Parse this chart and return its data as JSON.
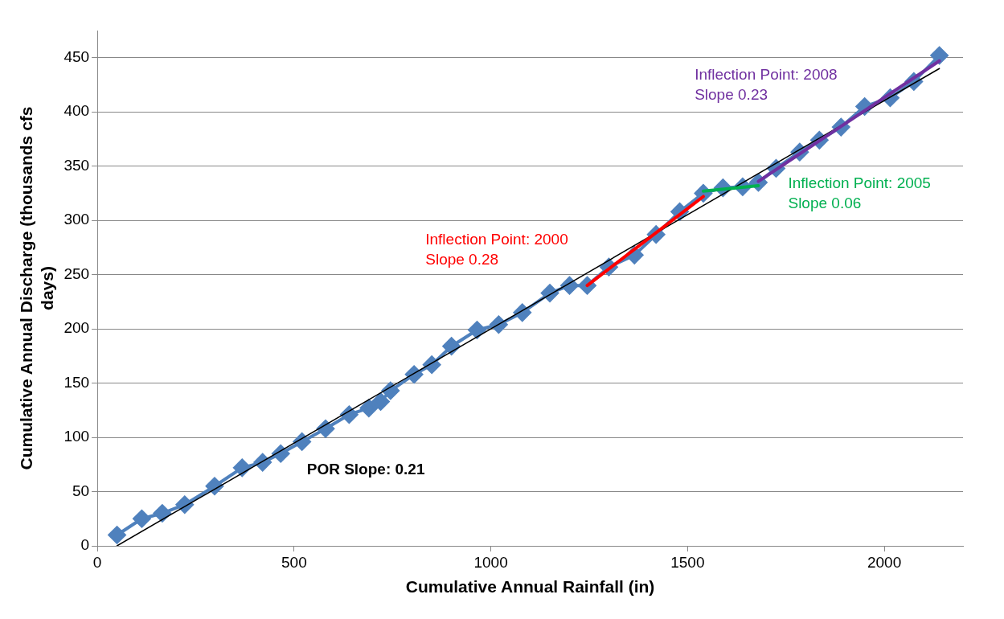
{
  "chart_data": {
    "type": "line",
    "xlabel": "Cumulative Annual Rainfall (in)",
    "ylabel": "Cumulative Annual Discharge (thousands cfs days)",
    "xlim": [
      0,
      2200
    ],
    "xticks": [
      0,
      500,
      1000,
      1500,
      2000
    ],
    "ylim": [
      0,
      475
    ],
    "yticks": [
      0,
      50,
      100,
      150,
      200,
      250,
      300,
      350,
      400,
      450
    ],
    "grid": "y",
    "legend": false,
    "series": [
      {
        "marker": "diamond",
        "color": "#4f81bd",
        "x": [
          50,
          113,
          165,
          222,
          298,
          368,
          420,
          466,
          520,
          580,
          640,
          690,
          720,
          745,
          805,
          850,
          900,
          965,
          1020,
          1080,
          1150,
          1200,
          1245,
          1300,
          1365,
          1420,
          1480,
          1540,
          1590,
          1640,
          1680,
          1725,
          1785,
          1835,
          1890,
          1950,
          2015,
          2075,
          2140
        ],
        "values": [
          10,
          25,
          30,
          38,
          55,
          72,
          77,
          85,
          96,
          108,
          121,
          127,
          133,
          143,
          158,
          167,
          184,
          199,
          204,
          215,
          233,
          240,
          240,
          257,
          268,
          287,
          308,
          325,
          330,
          331,
          335,
          348,
          363,
          374,
          386,
          405,
          413,
          428,
          452
        ]
      },
      {
        "marker": "none",
        "color": "#000000",
        "x": [
          50,
          2140
        ],
        "values": [
          0,
          440
        ]
      },
      {
        "marker": "none",
        "color": "#ff0000",
        "x": [
          1245,
          1540
        ],
        "values": [
          240,
          322
        ]
      },
      {
        "marker": "none",
        "color": "#00b050",
        "x": [
          1540,
          1680
        ],
        "values": [
          327,
          332
        ]
      },
      {
        "marker": "none",
        "color": "#7030a0",
        "x": [
          1680,
          2140
        ],
        "values": [
          336,
          447
        ]
      }
    ],
    "annotations": [
      "POR Slope: 0.21",
      "Inflection Point: 2000\nSlope 0.28",
      "Inflection Point: 2005\nSlope 0.06",
      "Inflection Point: 2008\nSlope 0.23"
    ]
  }
}
